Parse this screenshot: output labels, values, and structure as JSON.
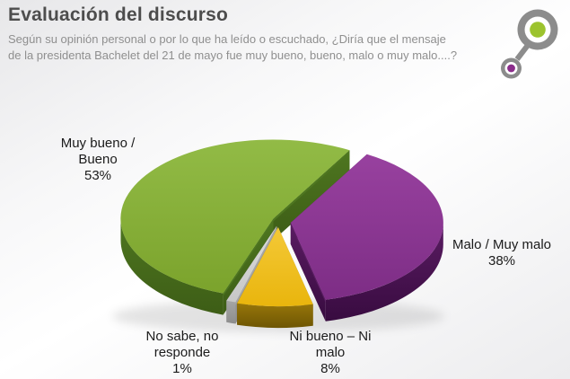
{
  "header": {
    "title": "Evaluación del discurso",
    "subtitle_line1": "Según su opinión personal o por lo que ha leído o escuchado, ¿Diría que el mensaje",
    "subtitle_line2": "de la presidenta Bachelet del 21 de mayo fue muy bueno, bueno, malo o muy malo....?"
  },
  "logo": {
    "ring_color": "#8c8c8c",
    "inner_color": "#ffffff",
    "dot_green": "#9cc32e",
    "dot_purple": "#8b2d8b"
  },
  "chart_data": {
    "type": "pie",
    "title": "Evaluación del discurso",
    "total": 100,
    "values_unit": "%",
    "effect": "3d-exploded",
    "direction": "clockwise",
    "start_angle_deg": 109.2,
    "legend_position": "outside-labels",
    "slices": [
      {
        "label": "Muy bueno / Bueno",
        "value": 53,
        "pct_label": "53%",
        "label_lines": [
          "Muy bueno /",
          "Bueno",
          "53%"
        ],
        "color": "#7ba32c",
        "color_light": "#92bb46",
        "side": "#4e7620",
        "side_dark": "#3d5d16"
      },
      {
        "label": "Malo / Muy malo",
        "value": 38,
        "pct_label": "38%",
        "label_lines": [
          "Malo / Muy malo",
          "38%"
        ],
        "color": "#7d2d85",
        "color_light": "#98419f",
        "side": "#5a1c62",
        "side_dark": "#380b40"
      },
      {
        "label": "Ni bueno – Ni malo",
        "value": 8,
        "pct_label": "8%",
        "label_lines": [
          "Ni bueno – Ni",
          "malo",
          "8%"
        ],
        "color": "#e9b50d",
        "color_light": "#f4c937",
        "side": "#97760a",
        "side_dark": "#6e5603"
      },
      {
        "label": "No sabe, no responde",
        "value": 1,
        "pct_label": "1%",
        "label_lines": [
          "No sabe, no",
          "responde",
          "1%"
        ],
        "color": "#c7c7c7",
        "color_light": "#dcdcdc",
        "side": "#a6a6a6",
        "side_dark": "#8d8d8d"
      }
    ]
  }
}
